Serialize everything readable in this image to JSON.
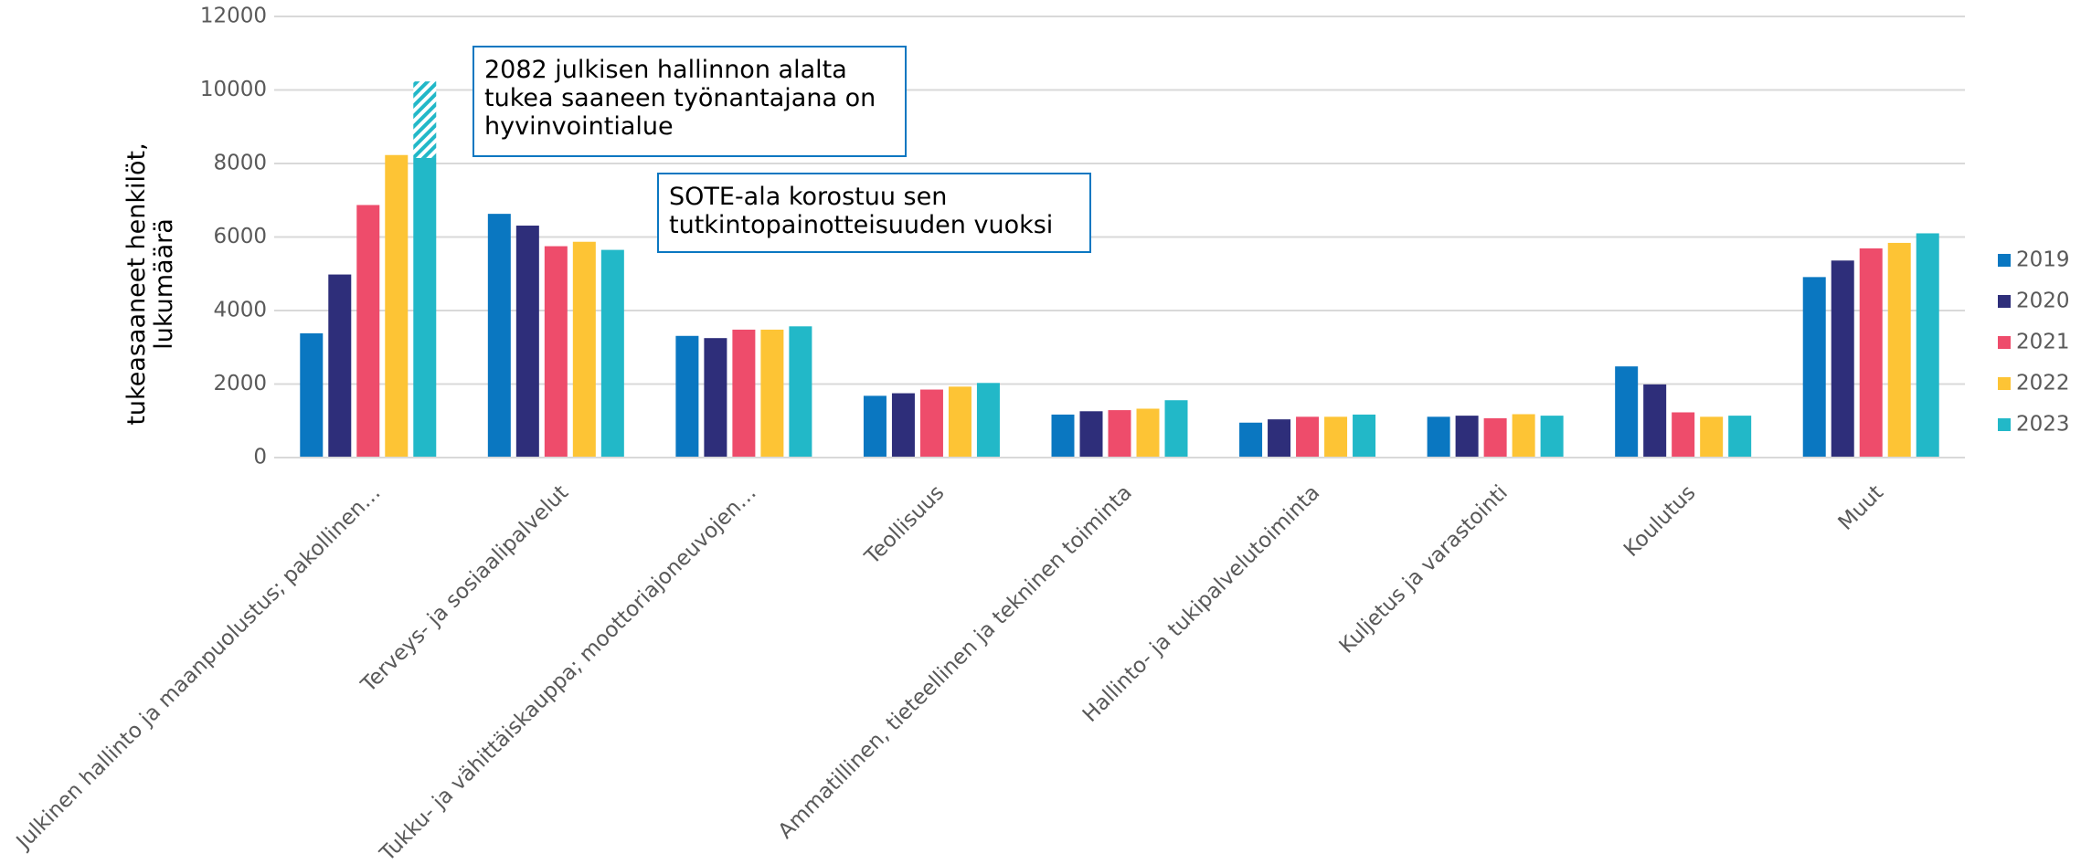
{
  "chart_data": {
    "type": "bar",
    "ylabel": [
      "tukeasaaneet henkilöt,",
      "lukumäärä"
    ],
    "categories": [
      "Julkinen hallinto ja maanpuolustus; pakollinen…",
      "Terveys- ja sosiaalipalvelut",
      "Tukku- ja vähittäiskauppa; moottoriajoneuvojen…",
      "Teollisuus",
      "Ammatillinen, tieteellinen ja tekninen toiminta",
      "Hallinto- ja tukipalvelutoiminta",
      "Kuljetus ja varastointi",
      "Koulutus",
      "Muut"
    ],
    "series": [
      {
        "name": "2019",
        "color": "#0a77c1",
        "values": [
          3380,
          6630,
          3310,
          1680,
          1170,
          950,
          1110,
          2480,
          4910
        ]
      },
      {
        "name": "2020",
        "color": "#2e2e7a",
        "values": [
          4980,
          6310,
          3250,
          1750,
          1260,
          1040,
          1140,
          1990,
          5360
        ]
      },
      {
        "name": "2021",
        "color": "#ee4c6b",
        "values": [
          6870,
          5750,
          3480,
          1850,
          1290,
          1110,
          1070,
          1230,
          5690
        ]
      },
      {
        "name": "2022",
        "color": "#fdc435",
        "values": [
          8230,
          5870,
          3480,
          1930,
          1330,
          1110,
          1180,
          1110,
          5840
        ]
      },
      {
        "name": "2023",
        "color": "#22b8c8",
        "values": [
          8150,
          5650,
          3570,
          2030,
          1560,
          1170,
          1140,
          1140,
          6100
        ]
      }
    ],
    "hatched_segment": {
      "series": 4,
      "category": 0,
      "value": 2082
    },
    "annotations": [
      {
        "lines": [
          "2082 julkisen hallinnon alalta",
          "tukea saaneen työnantajana on",
          "hyvinvointialue"
        ]
      },
      {
        "lines": [
          "SOTE-ala korostuu sen",
          "tutkintopainotteisuuden vuoksi"
        ]
      }
    ],
    "ylim": [
      0,
      12000
    ],
    "yticks": [
      0,
      2000,
      4000,
      6000,
      8000,
      10000,
      12000
    ],
    "grid": true,
    "legend": "right"
  }
}
